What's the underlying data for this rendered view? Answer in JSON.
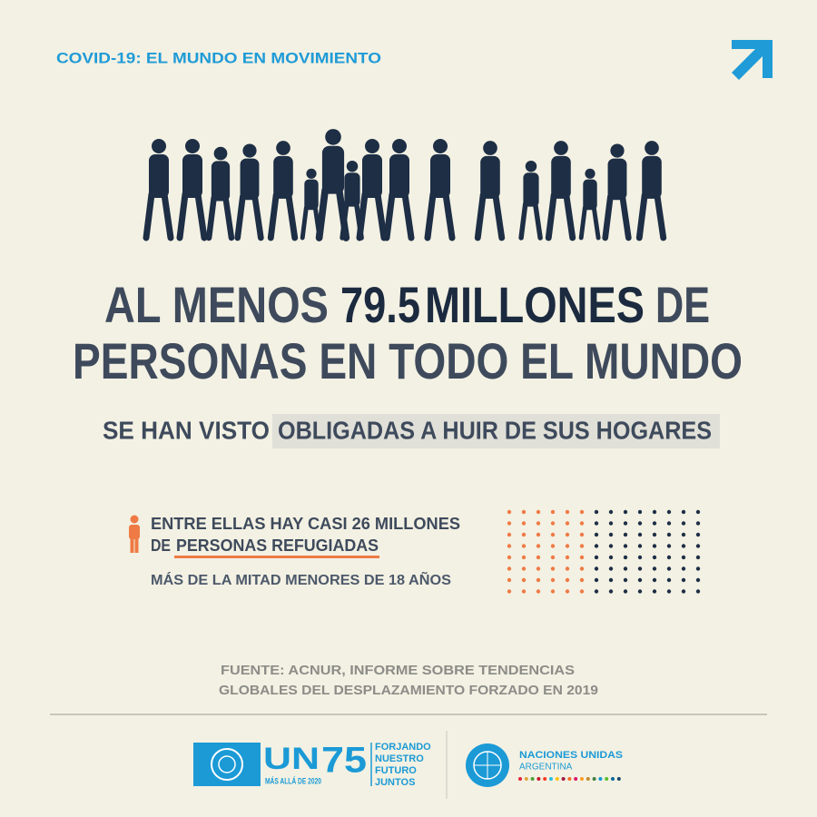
{
  "header": {
    "title": "COVID-19: EL MUNDO EN MOVIMIENTO"
  },
  "headline": {
    "line1": [
      "AL MENOS",
      "79.5",
      "MILLONES",
      "DE"
    ],
    "line2": "PERSONAS EN TODO EL MUNDO"
  },
  "subheadline": {
    "plain": "SE HAN VISTO",
    "highlight": "OBLIGADAS A HUIR DE SUS HOGARES"
  },
  "refugees": {
    "line1": "ENTRE ELLAS HAY CASI 26 MILLONES",
    "line2_plain": "DE",
    "line2_underlined": "PERSONAS REFUGIADAS",
    "note": "MÁS DE LA MITAD MENORES DE 18 AÑOS"
  },
  "source": {
    "lines": [
      "FUENTE: ACNUR, INFORME SOBRE TENDENCIAS",
      "GLOBALES DEL DESPLAZAMIENTO FORZADO EN 2019"
    ]
  },
  "footer": {
    "un75": {
      "mark": "UN",
      "number": "75",
      "tagline": "MÁS ALLÁ DE 2020",
      "motto": [
        "FORJANDO",
        "NUESTRO",
        "FUTURO",
        "JUNTOS"
      ]
    },
    "un_argentina": {
      "name": "NACIONES UNIDAS",
      "country": "ARGENTINA"
    }
  }
}
